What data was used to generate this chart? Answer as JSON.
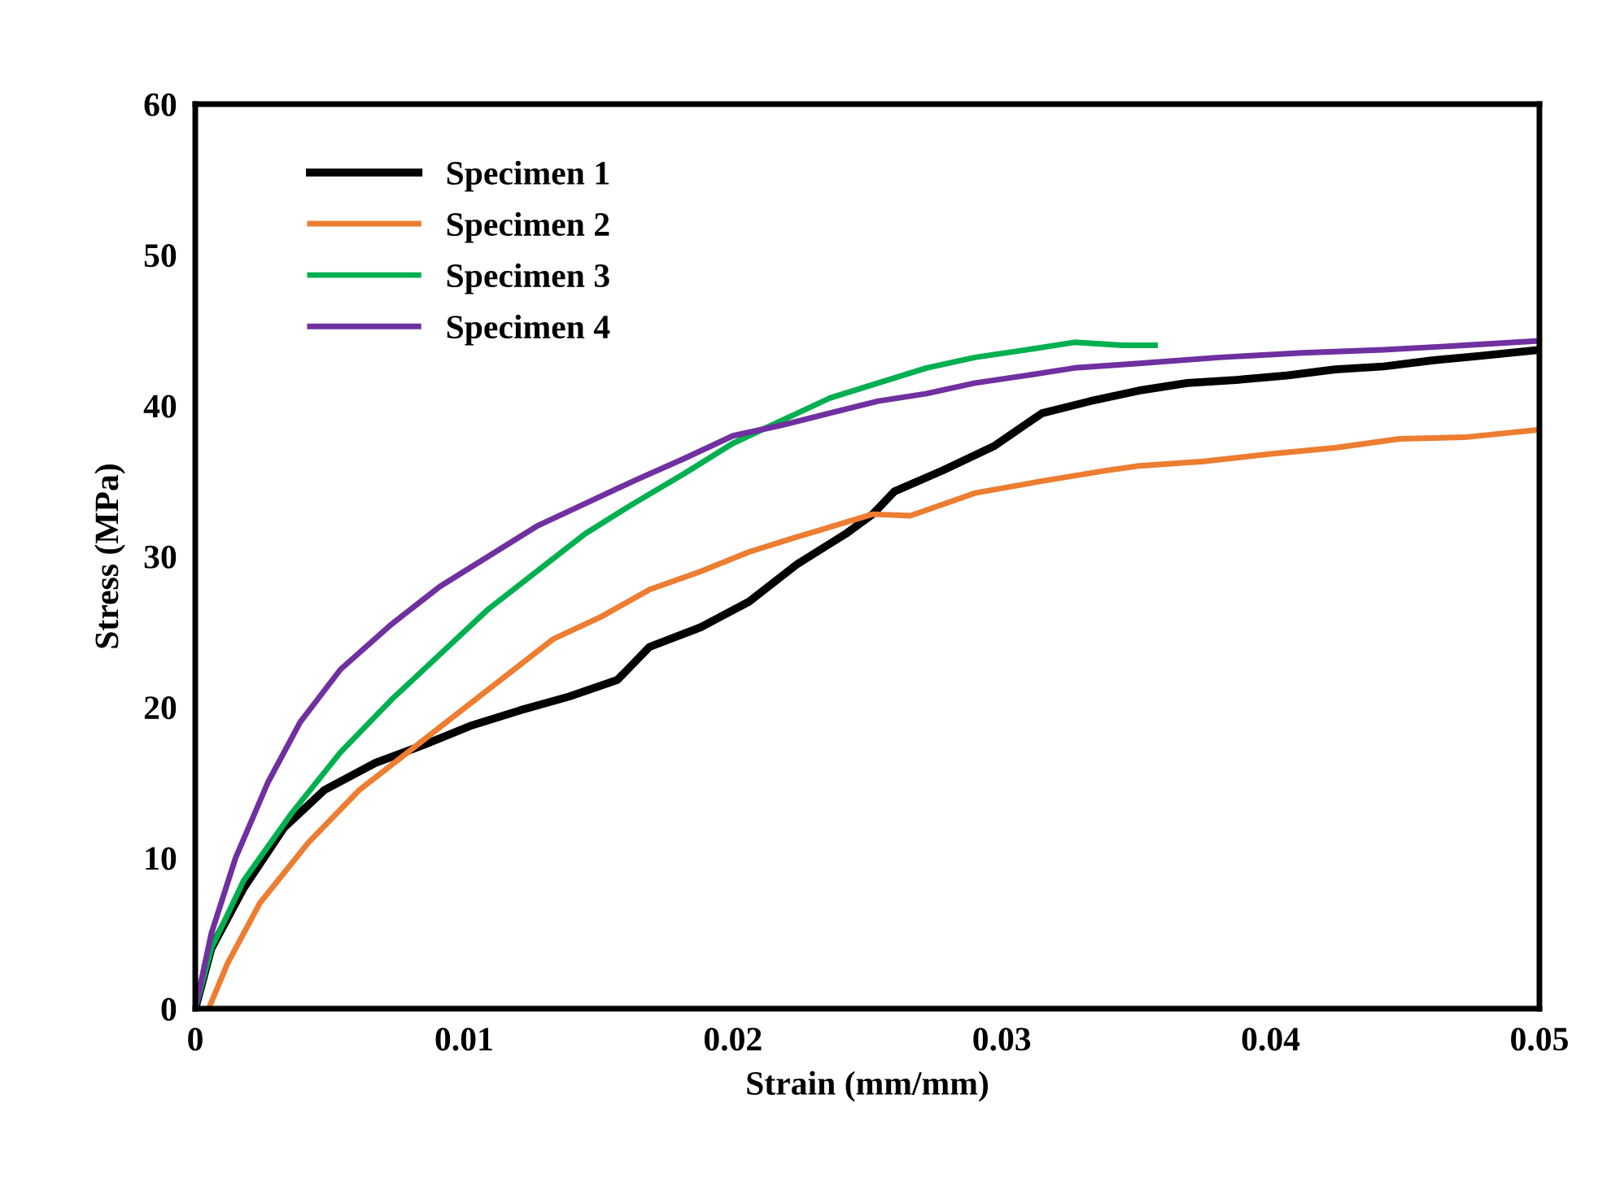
{
  "chart_data": {
    "type": "line",
    "xlabel": "Strain (mm/mm)",
    "ylabel": "Stress (MPa)",
    "xlim": [
      0,
      0.05
    ],
    "xticks": [
      {
        "value": 0,
        "label": "0"
      },
      0.01,
      0.02,
      0.03,
      0.04,
      0.05
    ],
    "ylim": [
      0,
      60
    ],
    "yticks": [
      0,
      10,
      20,
      30,
      40,
      50,
      60
    ],
    "grid": false,
    "legend": "top left",
    "marker": "none",
    "line_style": "solid",
    "series": [
      {
        "name": "Specimen 1",
        "color": "#000000",
        "x": [
          0,
          0.0006,
          0.0018,
          0.0033,
          0.0048,
          0.0067,
          0.0085,
          0.0103,
          0.0121,
          0.0139,
          0.0157,
          0.0169,
          0.0188,
          0.0206,
          0.0224,
          0.0242,
          0.0252,
          0.026,
          0.0278,
          0.0297,
          0.0315,
          0.0333,
          0.0351,
          0.0369,
          0.0387,
          0.0406,
          0.0424,
          0.0442,
          0.046,
          0.0478,
          0.05
        ],
        "values": [
          0,
          4,
          8,
          12,
          14.5,
          16.3,
          17.5,
          18.8,
          19.8,
          20.7,
          21.8,
          24,
          25.3,
          27,
          29.5,
          31.5,
          32.8,
          34.3,
          35.7,
          37.3,
          39.5,
          40.3,
          41,
          41.5,
          41.7,
          42,
          42.4,
          42.6,
          43,
          43.3,
          43.7
        ]
      },
      {
        "name": "Specimen 2",
        "color": "#ed7d31",
        "x": [
          0.0005,
          0.0012,
          0.0024,
          0.0042,
          0.0061,
          0.0079,
          0.0097,
          0.0115,
          0.0133,
          0.0151,
          0.0169,
          0.0188,
          0.0206,
          0.0224,
          0.0252,
          0.0266,
          0.029,
          0.0315,
          0.0339,
          0.0351,
          0.0375,
          0.04,
          0.0424,
          0.0448,
          0.0472,
          0.05
        ],
        "values": [
          0,
          3,
          7,
          11,
          14.5,
          17,
          19.5,
          22,
          24.5,
          26,
          27.8,
          29,
          30.3,
          31.3,
          32.8,
          32.7,
          34.2,
          35,
          35.7,
          36,
          36.3,
          36.8,
          37.2,
          37.8,
          37.9,
          38.4
        ]
      },
      {
        "name": "Specimen 3",
        "color": "#00b050",
        "x": [
          0,
          0.0006,
          0.0018,
          0.0036,
          0.0054,
          0.0073,
          0.0091,
          0.0109,
          0.0127,
          0.0145,
          0.0163,
          0.0182,
          0.02,
          0.0218,
          0.0236,
          0.0254,
          0.0272,
          0.029,
          0.0309,
          0.0327,
          0.0345,
          0.0357
        ],
        "values": [
          0,
          4,
          8.5,
          13,
          17,
          20.5,
          23.5,
          26.5,
          29,
          31.5,
          33.5,
          35.5,
          37.5,
          39,
          40.5,
          41.5,
          42.5,
          43.2,
          43.7,
          44.2,
          44,
          44
        ]
      },
      {
        "name": "Specimen 4",
        "color": "#7030a0",
        "x": [
          0,
          0.0006,
          0.0015,
          0.0027,
          0.0039,
          0.0054,
          0.0073,
          0.0091,
          0.0109,
          0.0127,
          0.0145,
          0.0163,
          0.0182,
          0.02,
          0.0218,
          0.0236,
          0.0254,
          0.0272,
          0.029,
          0.0309,
          0.0327,
          0.0351,
          0.0381,
          0.0412,
          0.0442,
          0.0472,
          0.05
        ],
        "values": [
          0,
          5,
          10,
          15,
          19,
          22.5,
          25.5,
          28,
          30,
          32,
          33.5,
          35,
          36.5,
          38,
          38.7,
          39.5,
          40.3,
          40.8,
          41.5,
          42,
          42.5,
          42.8,
          43.2,
          43.5,
          43.7,
          44,
          44.3
        ]
      }
    ]
  }
}
